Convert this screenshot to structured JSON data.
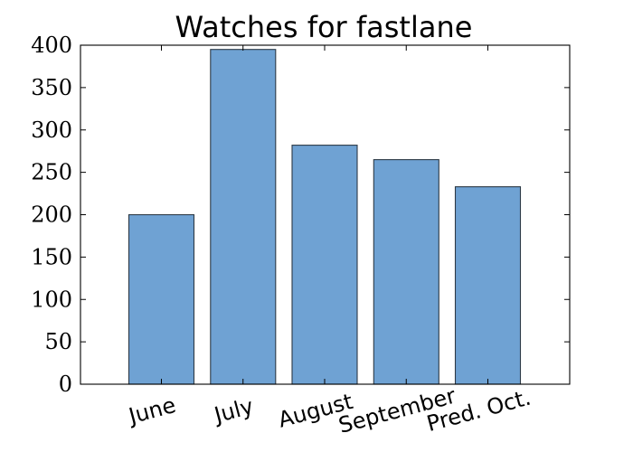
{
  "chart_data": {
    "type": "bar",
    "title": "Watches for fastlane",
    "xlabel": "",
    "ylabel": "",
    "categories": [
      "June",
      "July",
      "August",
      "September",
      "Pred. Oct."
    ],
    "values": [
      200,
      395,
      282,
      265,
      233
    ],
    "ylim": [
      0,
      400
    ],
    "yticks": [
      0,
      50,
      100,
      150,
      200,
      250,
      300,
      350,
      400
    ],
    "ytick_labels": [
      "0",
      "50",
      "100",
      "150",
      "200",
      "250",
      "300",
      "350",
      "400"
    ],
    "legend": "none",
    "grid": false,
    "bar_color": "#6fa2d3",
    "edge_color": "#2d3a46"
  }
}
